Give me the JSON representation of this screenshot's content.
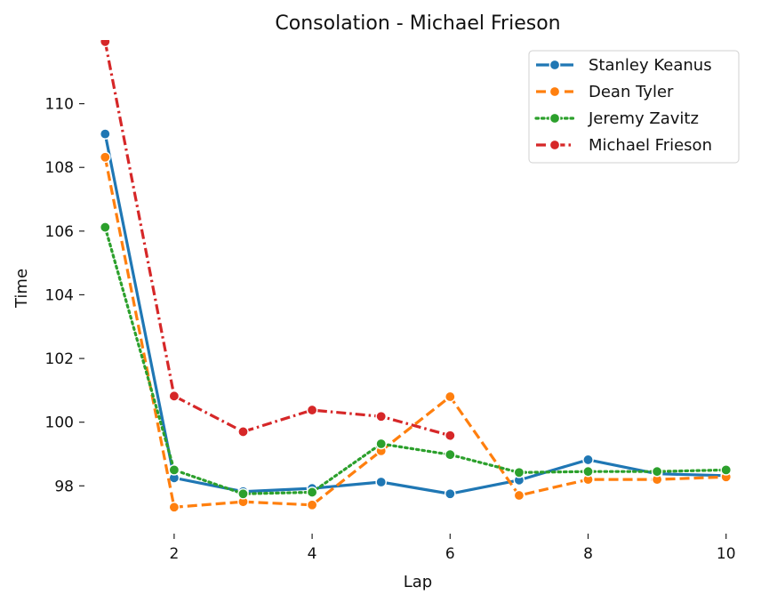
{
  "chart_data": {
    "type": "line",
    "title": "Consolation - Michael Frieson",
    "xlabel": "Lap",
    "ylabel": "Time",
    "xlim": [
      0.7,
      10.3
    ],
    "ylim": [
      96.5,
      112.0
    ],
    "xticks": [
      2,
      4,
      6,
      8,
      10
    ],
    "yticks": [
      98,
      100,
      102,
      104,
      106,
      108,
      110
    ],
    "grid": false,
    "legend_position": "top-right",
    "series": [
      {
        "name": "Stanley Keanus",
        "color": "#1f77b4",
        "dash": "solid",
        "x": [
          1,
          2,
          3,
          4,
          5,
          6,
          7,
          8,
          9,
          10
        ],
        "y": [
          109.05,
          98.25,
          97.82,
          97.92,
          98.12,
          97.75,
          98.18,
          98.82,
          98.38,
          98.32
        ]
      },
      {
        "name": "Dean Tyler",
        "color": "#ff7f0e",
        "dash": "dashed",
        "x": [
          1,
          2,
          3,
          4,
          5,
          6,
          7,
          8,
          9,
          10
        ],
        "y": [
          108.32,
          97.33,
          97.5,
          97.4,
          99.1,
          100.8,
          97.7,
          98.2,
          98.2,
          98.28
        ]
      },
      {
        "name": "Jeremy Zavitz",
        "color": "#2ca02c",
        "dash": "dotted",
        "x": [
          1,
          2,
          3,
          4,
          5,
          6,
          7,
          8,
          9,
          10
        ],
        "y": [
          106.12,
          98.5,
          97.75,
          97.8,
          99.32,
          98.98,
          98.42,
          98.45,
          98.45,
          98.5
        ]
      },
      {
        "name": "Michael Frieson",
        "color": "#d62728",
        "dash": "dashdot",
        "x": [
          1,
          2,
          3,
          4,
          5,
          6
        ],
        "y": [
          111.95,
          100.82,
          99.7,
          100.38,
          100.18,
          99.58
        ]
      }
    ]
  }
}
